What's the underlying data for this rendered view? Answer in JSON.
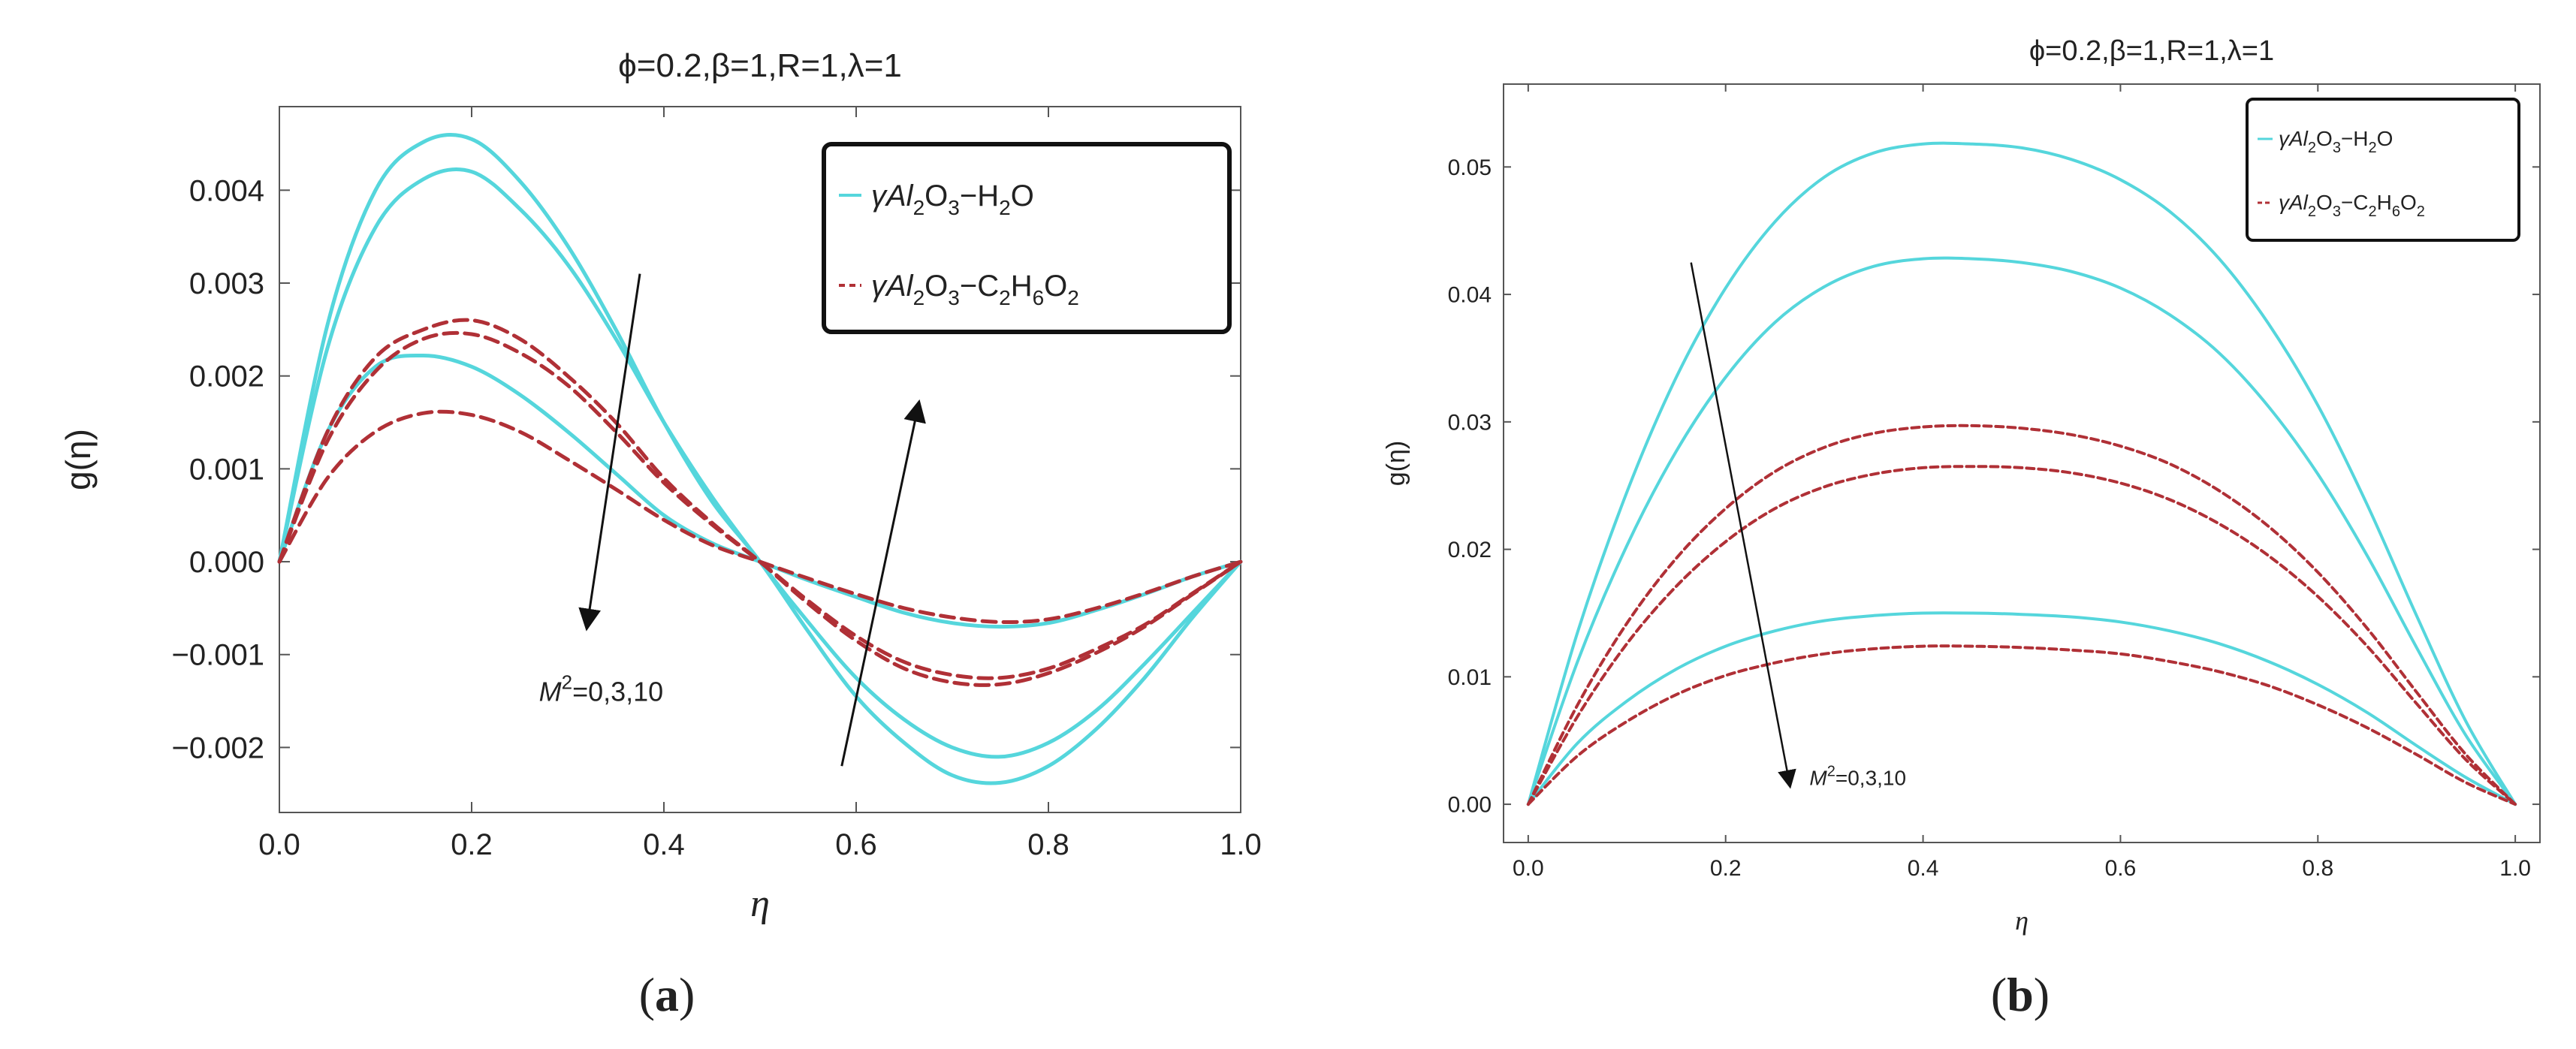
{
  "colors": {
    "water": "#55d6dc",
    "glycol": "#b03036",
    "axis": "#555555",
    "arrow": "#111111"
  },
  "chart_data": [
    {
      "id": "a",
      "type": "line",
      "title": "ϕ=0.2,β=1,R=1,λ=1",
      "xlabel": "η",
      "ylabel": "g(η)",
      "panel_label": "(a)",
      "bold_letter": "a",
      "xlim": [
        0,
        1
      ],
      "ylim": [
        -0.0027,
        0.0049
      ],
      "xticks": [
        0.0,
        0.2,
        0.4,
        0.6,
        0.8,
        1.0
      ],
      "xtick_labels": [
        "0.0",
        "0.2",
        "0.4",
        "0.6",
        "0.8",
        "1.0"
      ],
      "yticks": [
        -0.002,
        -0.001,
        0.0,
        0.001,
        0.002,
        0.003,
        0.004
      ],
      "ytick_labels": [
        "−0.002",
        "−0.001",
        "0.000",
        "0.001",
        "0.002",
        "0.003",
        "0.004"
      ],
      "annotation": {
        "text_base": "M",
        "text_sup": "2",
        "text_rest": "=0,3,10"
      },
      "legend": [
        {
          "pre": "γAl",
          "s1": "2",
          "mid1": "O",
          "s2": "3",
          "mid2": "−H",
          "s3": "2",
          "mid3": "O",
          "s4": "",
          "post": ""
        },
        {
          "pre": "γAl",
          "s1": "2",
          "mid1": "O",
          "s2": "3",
          "mid2": "−C",
          "s3": "2",
          "mid3": "H",
          "s4": "6",
          "post": "O",
          "s5": "2"
        }
      ],
      "x": [
        0.0,
        0.05,
        0.1,
        0.15,
        0.2,
        0.25,
        0.3,
        0.35,
        0.4,
        0.45,
        0.5,
        0.55,
        0.6,
        0.65,
        0.7,
        0.75,
        0.8,
        0.85,
        0.9,
        0.95,
        1.0
      ],
      "series": [
        {
          "name": "γAl2O3−H2O, M²=0",
          "fluid": "water",
          "values": [
            0.0,
            0.00255,
            0.004,
            0.00452,
            0.00455,
            0.0041,
            0.0034,
            0.0025,
            0.0015,
            0.00065,
            0.0,
            -0.00075,
            -0.00145,
            -0.00195,
            -0.0023,
            -0.00238,
            -0.0022,
            -0.0018,
            -0.00125,
            -0.0006,
            0.0
          ]
        },
        {
          "name": "γAl2O3−H2O, M²=3",
          "fluid": "water",
          "values": [
            0.0,
            0.0023,
            0.0036,
            0.00412,
            0.0042,
            0.0038,
            0.0032,
            0.0024,
            0.0015,
            0.0007,
            0.0,
            -0.00065,
            -0.00125,
            -0.0017,
            -0.002,
            -0.0021,
            -0.00195,
            -0.0016,
            -0.0011,
            -0.00055,
            0.0
          ]
        },
        {
          "name": "γAl2O3−H2O, M²=10",
          "fluid": "water",
          "values": [
            0.0,
            0.0014,
            0.0021,
            0.00222,
            0.0021,
            0.0018,
            0.0014,
            0.00095,
            0.0005,
            0.0002,
            0.0,
            -0.0002,
            -0.00038,
            -0.00055,
            -0.00066,
            -0.0007,
            -0.00066,
            -0.00052,
            -0.00035,
            -0.00016,
            0.0
          ]
        },
        {
          "name": "γAl2O3−C2H6O2, M²=0",
          "fluid": "glycol",
          "values": [
            0.0,
            0.0014,
            0.0022,
            0.0025,
            0.0026,
            0.0024,
            0.002,
            0.0015,
            0.0009,
            0.00042,
            0.0,
            -0.00045,
            -0.00085,
            -0.00115,
            -0.0013,
            -0.00132,
            -0.0012,
            -0.00098,
            -0.0007,
            -0.00035,
            0.0
          ]
        },
        {
          "name": "γAl2O3−C2H6O2, M²=3",
          "fluid": "glycol",
          "values": [
            0.0,
            0.0013,
            0.00205,
            0.0024,
            0.00245,
            0.00225,
            0.0019,
            0.0014,
            0.00085,
            0.0004,
            0.0,
            -0.00042,
            -0.0008,
            -0.00108,
            -0.00122,
            -0.00125,
            -0.00115,
            -0.00094,
            -0.00068,
            -0.00034,
            0.0
          ]
        },
        {
          "name": "γAl2O3−C2H6O2, M²=10",
          "fluid": "glycol",
          "values": [
            0.0,
            0.0009,
            0.0014,
            0.0016,
            0.00158,
            0.0014,
            0.0011,
            0.00078,
            0.00045,
            0.00018,
            0.0,
            -0.00018,
            -0.00035,
            -0.0005,
            -0.0006,
            -0.00065,
            -0.00062,
            -0.0005,
            -0.00034,
            -0.00016,
            0.0
          ]
        }
      ],
      "arrows": [
        {
          "from": [
            0.375,
            0.0031
          ],
          "to": [
            0.32,
            -0.0007
          ]
        },
        {
          "from": [
            0.585,
            -0.0022
          ],
          "to": [
            0.665,
            0.0017
          ]
        }
      ],
      "annotation_pos": [
        0.27,
        -0.0015
      ]
    },
    {
      "id": "b",
      "type": "line",
      "title": "ϕ=0.2,β=1,R=1,λ=1",
      "xlabel": "η",
      "ylabel": "g(η)",
      "panel_label": "(b)",
      "bold_letter": "b",
      "xlim": [
        -0.025,
        1.025
      ],
      "ylim": [
        -0.003,
        0.0565
      ],
      "xticks": [
        0.0,
        0.2,
        0.4,
        0.6,
        0.8,
        1.0
      ],
      "xtick_labels": [
        "0.0",
        "0.2",
        "0.4",
        "0.6",
        "0.8",
        "1.0"
      ],
      "yticks": [
        0.0,
        0.01,
        0.02,
        0.03,
        0.04,
        0.05
      ],
      "ytick_labels": [
        "0.00",
        "0.01",
        "0.02",
        "0.03",
        "0.04",
        "0.05"
      ],
      "annotation": {
        "text_base": "M",
        "text_sup": "2",
        "text_rest": "=0,3,10"
      },
      "legend": [
        {
          "pre": "γAl",
          "s1": "2",
          "mid1": "O",
          "s2": "3",
          "mid2": "−H",
          "s3": "2",
          "mid3": "O",
          "s4": "",
          "post": ""
        },
        {
          "pre": "γAl",
          "s1": "2",
          "mid1": "O",
          "s2": "3",
          "mid2": "−C",
          "s3": "2",
          "mid3": "H",
          "s4": "6",
          "post": "O",
          "s5": "2"
        }
      ],
      "x": [
        0.0,
        0.05,
        0.1,
        0.15,
        0.2,
        0.25,
        0.3,
        0.35,
        0.4,
        0.45,
        0.5,
        0.55,
        0.6,
        0.65,
        0.7,
        0.75,
        0.8,
        0.85,
        0.9,
        0.95,
        1.0
      ],
      "series": [
        {
          "name": "γAl2O3−H2O, M²=0",
          "fluid": "water",
          "values": [
            0.0,
            0.0135,
            0.0245,
            0.0335,
            0.0405,
            0.0457,
            0.0492,
            0.0511,
            0.0518,
            0.0518,
            0.0515,
            0.0506,
            0.049,
            0.0465,
            0.0428,
            0.0377,
            0.0313,
            0.0235,
            0.0148,
            0.0065,
            0.0
          ]
        },
        {
          "name": "γAl2O3−H2O, M²=3",
          "fluid": "water",
          "values": [
            0.0,
            0.0112,
            0.0203,
            0.0277,
            0.0335,
            0.0378,
            0.0406,
            0.0422,
            0.0428,
            0.0428,
            0.0425,
            0.0418,
            0.0405,
            0.0384,
            0.0354,
            0.0312,
            0.0259,
            0.0195,
            0.0123,
            0.0054,
            0.0
          ]
        },
        {
          "name": "γAl2O3−H2O, M²=10",
          "fluid": "water",
          "values": [
            0.0,
            0.0048,
            0.0081,
            0.0106,
            0.0124,
            0.0136,
            0.0144,
            0.0148,
            0.015,
            0.015,
            0.0149,
            0.0147,
            0.0143,
            0.0136,
            0.0126,
            0.0112,
            0.0094,
            0.0072,
            0.0046,
            0.0021,
            0.0
          ]
        },
        {
          "name": "γAl2O3−C2H6O2, M²=0",
          "fluid": "glycol",
          "values": [
            0.0,
            0.0078,
            0.0142,
            0.0193,
            0.0232,
            0.0261,
            0.028,
            0.0291,
            0.0296,
            0.0297,
            0.0295,
            0.029,
            0.0281,
            0.0267,
            0.0246,
            0.0218,
            0.0182,
            0.0138,
            0.0088,
            0.0039,
            0.0
          ]
        },
        {
          "name": "γAl2O3−C2H6O2, M²=3",
          "fluid": "glycol",
          "values": [
            0.0,
            0.0069,
            0.0126,
            0.0171,
            0.0206,
            0.0232,
            0.0249,
            0.0259,
            0.0264,
            0.0265,
            0.0264,
            0.026,
            0.0252,
            0.0239,
            0.022,
            0.0195,
            0.0163,
            0.0124,
            0.0079,
            0.0035,
            0.0
          ]
        },
        {
          "name": "γAl2O3−C2H6O2, M²=10",
          "fluid": "glycol",
          "values": [
            0.0,
            0.0038,
            0.0065,
            0.0086,
            0.0101,
            0.0111,
            0.0118,
            0.0122,
            0.0124,
            0.0124,
            0.0123,
            0.0121,
            0.0118,
            0.0112,
            0.0104,
            0.0093,
            0.0078,
            0.006,
            0.0039,
            0.0017,
            0.0
          ]
        }
      ],
      "arrows": [
        {
          "from": [
            0.165,
            0.0425
          ],
          "to": [
            0.265,
            0.0015
          ]
        }
      ],
      "annotation_pos": [
        0.285,
        0.0015
      ]
    }
  ]
}
